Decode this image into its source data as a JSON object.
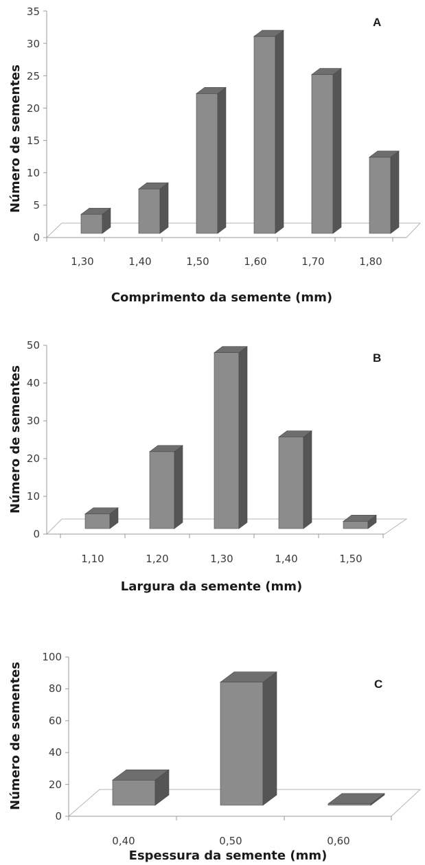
{
  "chart_data": [
    {
      "type": "bar",
      "panel_label": "A",
      "categories": [
        "1,30",
        "1,40",
        "1,50",
        "1,60",
        "1,70",
        "1,80"
      ],
      "values": [
        3,
        7,
        22,
        31,
        25,
        12
      ],
      "xlabel": "Comprimento da semente (mm)",
      "ylabel": "Número de sementes",
      "ylim": [
        0,
        35
      ],
      "yticks": [
        "0",
        "5",
        "10",
        "15",
        "20",
        "25",
        "30",
        "35"
      ],
      "style": "3d-column",
      "grid": false,
      "bar_color": "#8c8c8c",
      "bar_side_color": "#555555",
      "bar_top_color": "#6e6e6e"
    },
    {
      "type": "bar",
      "panel_label": "B",
      "categories": [
        "1,10",
        "1,20",
        "1,30",
        "1,40",
        "1,50"
      ],
      "values": [
        4,
        21,
        48,
        25,
        2
      ],
      "xlabel": "Largura da semente (mm)",
      "ylabel": "Número de sementes",
      "ylim": [
        0,
        50
      ],
      "yticks": [
        "0",
        "10",
        "20",
        "30",
        "40",
        "50"
      ],
      "style": "3d-column",
      "grid": false,
      "bar_color": "#8c8c8c",
      "bar_side_color": "#555555",
      "bar_top_color": "#6e6e6e"
    },
    {
      "type": "bar",
      "panel_label": "C",
      "categories": [
        "0,40",
        "0,50",
        "0,60"
      ],
      "values": [
        17,
        83,
        1
      ],
      "xlabel": "Espessura da semente (mm)",
      "ylabel": "Número de sementes",
      "ylim": [
        0,
        100
      ],
      "yticks": [
        "0",
        "20",
        "40",
        "60",
        "80",
        "100"
      ],
      "style": "3d-column",
      "grid": false,
      "bar_color": "#8c8c8c",
      "bar_side_color": "#555555",
      "bar_top_color": "#6e6e6e"
    }
  ]
}
